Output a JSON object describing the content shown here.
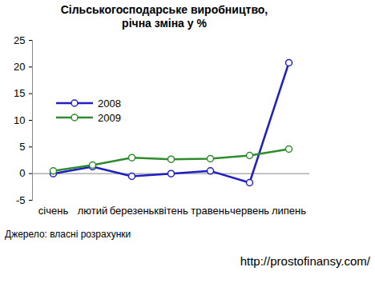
{
  "chart_data": {
    "type": "line",
    "title": "Сільськогосподарське виробництво,",
    "subtitle": "річна зміна у %",
    "categories": [
      "січень",
      "лютий",
      "березень",
      "квітень",
      "травень",
      "червень",
      "липень"
    ],
    "series": [
      {
        "name": "2008",
        "color": "#1f1fc4",
        "values": [
          0,
          1.3,
          -0.5,
          0,
          0.5,
          -1.7,
          20.8
        ]
      },
      {
        "name": "2009",
        "color": "#2e8b2e",
        "values": [
          0.5,
          1.6,
          3.0,
          2.7,
          2.8,
          3.4,
          4.6
        ]
      }
    ],
    "ylim": [
      -5,
      25
    ],
    "yticks": [
      -5,
      0,
      5,
      10,
      15,
      20,
      25
    ],
    "grid": false,
    "legend": "top-left",
    "marker": "circle",
    "annotations": [
      "Джерело: власні розрахунки",
      "http://prostofinansy.com/"
    ]
  }
}
